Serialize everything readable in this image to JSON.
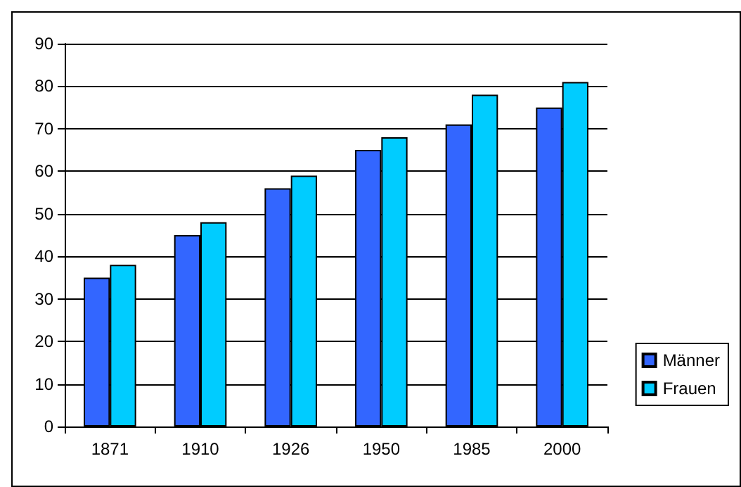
{
  "chart_data": {
    "type": "bar",
    "categories": [
      "1871",
      "1910",
      "1926",
      "1950",
      "1985",
      "2000"
    ],
    "series": [
      {
        "name": "Männer",
        "color": "#3366ff",
        "values": [
          35,
          45,
          56,
          65,
          71,
          75
        ]
      },
      {
        "name": "Frauen",
        "color": "#00ccff",
        "values": [
          38,
          48,
          59,
          68,
          78,
          81
        ]
      }
    ],
    "ylim": [
      0,
      90
    ],
    "yticks": [
      0,
      10,
      20,
      30,
      40,
      50,
      60,
      70,
      80,
      90
    ],
    "grid": "y",
    "legend": "right"
  }
}
